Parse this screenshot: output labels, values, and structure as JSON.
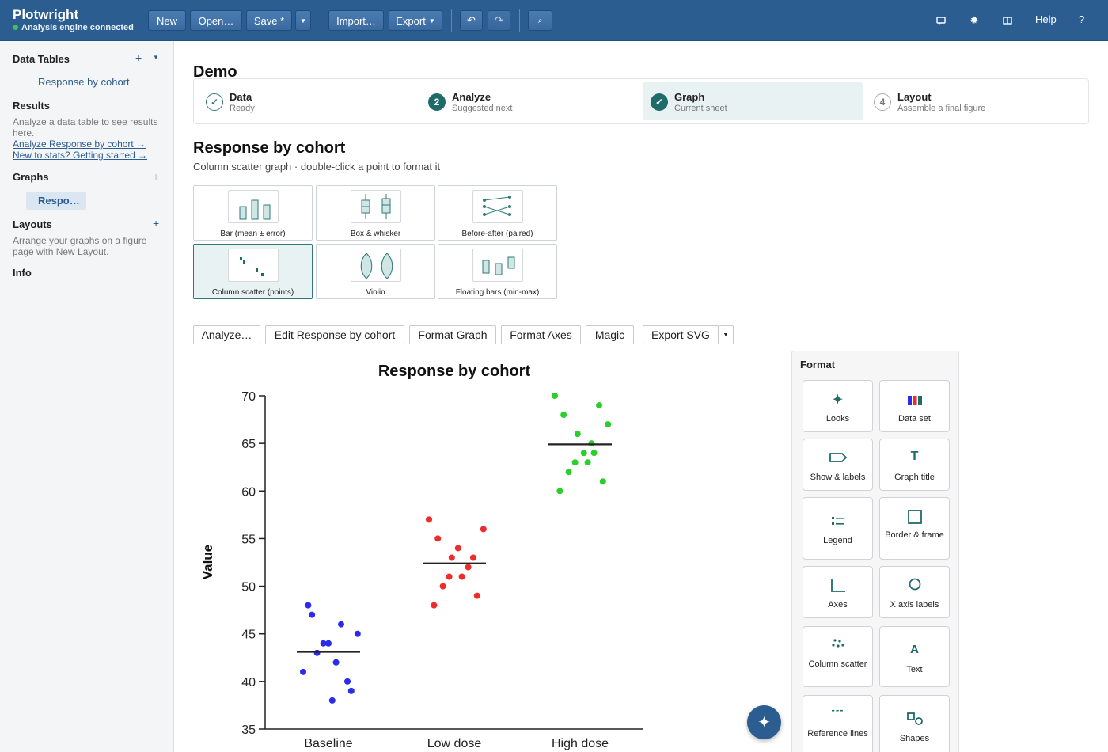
{
  "app": {
    "name": "Plotwright",
    "status": "Analysis engine connected"
  },
  "toolbar": {
    "new": "New",
    "open": "Open…",
    "save": "Save *",
    "import": "Import…",
    "export": "Export",
    "help": "Help",
    "question": "?"
  },
  "sidebar": {
    "data_tables": {
      "heading": "Data Tables",
      "items": [
        "Response by cohort"
      ]
    },
    "results": {
      "heading": "Results",
      "hint": "Analyze a data table to see results here.",
      "link1": "Analyze Response by cohort →",
      "link2": "New to stats? Getting started →"
    },
    "graphs": {
      "heading": "Graphs",
      "items": [
        "Respo…"
      ]
    },
    "layouts": {
      "heading": "Layouts",
      "hint": "Arrange your graphs on a figure page with New Layout."
    },
    "info": {
      "heading": "Info"
    }
  },
  "project": {
    "title": "Demo"
  },
  "steps": [
    {
      "num": "",
      "title": "Data",
      "sub": "Ready"
    },
    {
      "num": "2",
      "title": "Analyze",
      "sub": "Suggested next"
    },
    {
      "num": "",
      "title": "Graph",
      "sub": "Current sheet"
    },
    {
      "num": "4",
      "title": "Layout",
      "sub": "Assemble a final figure"
    }
  ],
  "graph": {
    "title": "Response by cohort",
    "subtitle": "Column scatter graph · double-click a point to format it"
  },
  "graph_types": [
    "Bar (mean ± error)",
    "Box & whisker",
    "Before-after (paired)",
    "Column scatter (points)",
    "Violin",
    "Floating bars (min-max)"
  ],
  "actions": {
    "analyze": "Analyze…",
    "edit": "Edit Response by cohort",
    "format_graph": "Format Graph",
    "format_axes": "Format Axes",
    "magic": "Magic",
    "export_svg": "Export SVG"
  },
  "format_panel": {
    "title": "Format",
    "cards": [
      "Looks",
      "Data set",
      "Show & labels",
      "Graph title",
      "Legend",
      "Border & frame",
      "Axes",
      "X axis labels",
      "Column scatter",
      "Text",
      "Reference lines",
      "Shapes"
    ]
  },
  "chart_data": {
    "type": "scatter",
    "title": "Response by cohort",
    "xlabel": "",
    "ylabel": "Value",
    "ylim": [
      35,
      70
    ],
    "yticks": [
      35,
      40,
      45,
      50,
      55,
      60,
      65,
      70
    ],
    "categories": [
      "Baseline",
      "Low dose",
      "High dose"
    ],
    "series": [
      {
        "category": "Baseline",
        "color": "#2b2bef",
        "mean": 43.1,
        "points": [
          [
            -0.16,
            48
          ],
          [
            -0.13,
            47
          ],
          [
            -0.04,
            44
          ],
          [
            0.0,
            44
          ],
          [
            0.1,
            46
          ],
          [
            0.23,
            45
          ],
          [
            -0.2,
            41
          ],
          [
            -0.09,
            43
          ],
          [
            0.06,
            42
          ],
          [
            0.15,
            40
          ],
          [
            0.18,
            39
          ],
          [
            0.03,
            38
          ]
        ]
      },
      {
        "category": "Low dose",
        "color": "#ef2b2b",
        "mean": 52.4,
        "points": [
          [
            -0.2,
            57
          ],
          [
            -0.13,
            55
          ],
          [
            0.03,
            54
          ],
          [
            0.23,
            56
          ],
          [
            -0.02,
            53
          ],
          [
            0.15,
            53
          ],
          [
            0.11,
            52
          ],
          [
            -0.04,
            51
          ],
          [
            0.06,
            51
          ],
          [
            -0.09,
            50
          ],
          [
            -0.16,
            48
          ],
          [
            0.18,
            49
          ]
        ]
      },
      {
        "category": "High dose",
        "color": "#2bcf2b",
        "mean": 64.9,
        "points": [
          [
            -0.2,
            70
          ],
          [
            -0.13,
            68
          ],
          [
            0.15,
            69
          ],
          [
            0.22,
            67
          ],
          [
            -0.02,
            66
          ],
          [
            0.09,
            65
          ],
          [
            0.03,
            64
          ],
          [
            -0.04,
            63
          ],
          [
            0.11,
            64
          ],
          [
            0.06,
            63
          ],
          [
            -0.09,
            62
          ],
          [
            -0.16,
            60
          ],
          [
            0.18,
            61
          ]
        ]
      }
    ]
  }
}
